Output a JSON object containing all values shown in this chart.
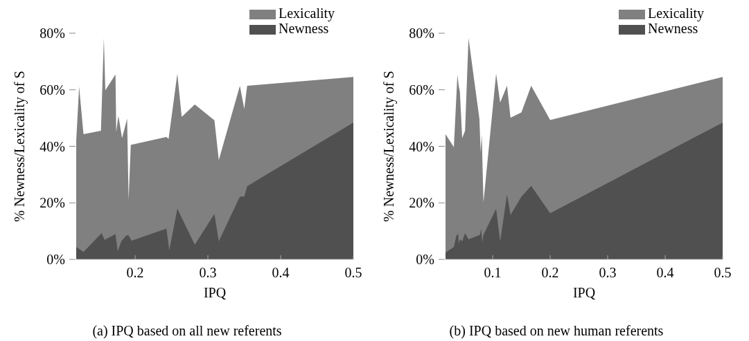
{
  "chart_data": [
    {
      "type": "area",
      "title": "(a) IPQ based on all new referents",
      "xlabel": "IPQ",
      "ylabel": "% Newness/Lexicality of S",
      "legend": "top right",
      "xlim": [
        0.119,
        0.5
      ],
      "xticks": [
        0.2,
        0.3,
        0.4,
        0.5
      ],
      "ylim": [
        0,
        80
      ],
      "yticks": [
        {
          "value": 0,
          "label": "0%"
        },
        {
          "value": 20,
          "label": "20%"
        },
        {
          "value": 40,
          "label": "40%"
        },
        {
          "value": 60,
          "label": "60%"
        },
        {
          "value": 80,
          "label": "80%"
        }
      ],
      "series": [
        {
          "name": "Lexicality",
          "color": "#808080",
          "x": [
            0.119,
            0.123,
            0.129,
            0.153,
            0.157,
            0.159,
            0.173,
            0.174,
            0.177,
            0.182,
            0.189,
            0.191,
            0.194,
            0.243,
            0.246,
            0.258,
            0.264,
            0.282,
            0.309,
            0.315,
            0.344,
            0.35,
            0.354,
            0.5
          ],
          "values": [
            41.9,
            61.1,
            44.3,
            45.5,
            78.3,
            59.8,
            65.4,
            45.1,
            50.8,
            42.9,
            49.8,
            21.0,
            40.5,
            43.3,
            42.6,
            65.7,
            50.4,
            54.8,
            49.2,
            35.1,
            61.4,
            53.2,
            61.4,
            64.5
          ]
        },
        {
          "name": "Newness",
          "color": "#505050",
          "x": [
            0.119,
            0.129,
            0.154,
            0.158,
            0.173,
            0.176,
            0.181,
            0.188,
            0.191,
            0.195,
            0.243,
            0.247,
            0.258,
            0.282,
            0.309,
            0.315,
            0.344,
            0.35,
            0.354,
            0.5
          ],
          "values": [
            4.4,
            2.6,
            9.3,
            6.9,
            8.9,
            2.8,
            6.4,
            8.5,
            8.5,
            6.6,
            10.9,
            3.2,
            17.9,
            5.2,
            16.1,
            6.4,
            22.2,
            22.2,
            25.9,
            48.4
          ]
        }
      ]
    },
    {
      "type": "area",
      "title": "(b) IPQ based on new human referents",
      "xlabel": "IPQ",
      "ylabel": "% Newness/Lexicality of S",
      "legend": "top right",
      "xlim": [
        0.018,
        0.5
      ],
      "xticks": [
        0.1,
        0.2,
        0.3,
        0.4,
        0.5
      ],
      "ylim": [
        0,
        80
      ],
      "yticks": [
        {
          "value": 0,
          "label": "0%"
        },
        {
          "value": 20,
          "label": "20%"
        },
        {
          "value": 40,
          "label": "40%"
        },
        {
          "value": 60,
          "label": "60%"
        },
        {
          "value": 80,
          "label": "80%"
        }
      ],
      "series": [
        {
          "name": "Lexicality",
          "color": "#808080",
          "x": [
            0.018,
            0.0325,
            0.0387,
            0.041,
            0.043,
            0.047,
            0.052,
            0.058,
            0.077,
            0.079,
            0.081,
            0.084,
            0.106,
            0.113,
            0.125,
            0.131,
            0.15,
            0.167,
            0.2,
            0.5
          ],
          "values": [
            44.3,
            39.7,
            65.3,
            61.3,
            59.2,
            42.9,
            45.5,
            78.3,
            49.6,
            37.9,
            44.2,
            20.2,
            65.7,
            55.5,
            61.4,
            50.1,
            52.0,
            61.4,
            49.3,
            64.5
          ]
        },
        {
          "name": "Newness",
          "color": "#505050",
          "x": [
            0.018,
            0.0325,
            0.037,
            0.04,
            0.041,
            0.043,
            0.047,
            0.052,
            0.058,
            0.078,
            0.08,
            0.082,
            0.084,
            0.106,
            0.113,
            0.125,
            0.131,
            0.15,
            0.167,
            0.2,
            0.5
          ],
          "values": [
            2.4,
            4.4,
            8.5,
            9.0,
            5.5,
            7.1,
            6.4,
            9.3,
            7.1,
            8.7,
            10.9,
            6.0,
            8.7,
            17.9,
            6.4,
            23.0,
            15.7,
            22.2,
            26.0,
            16.3,
            48.4
          ]
        }
      ]
    }
  ]
}
